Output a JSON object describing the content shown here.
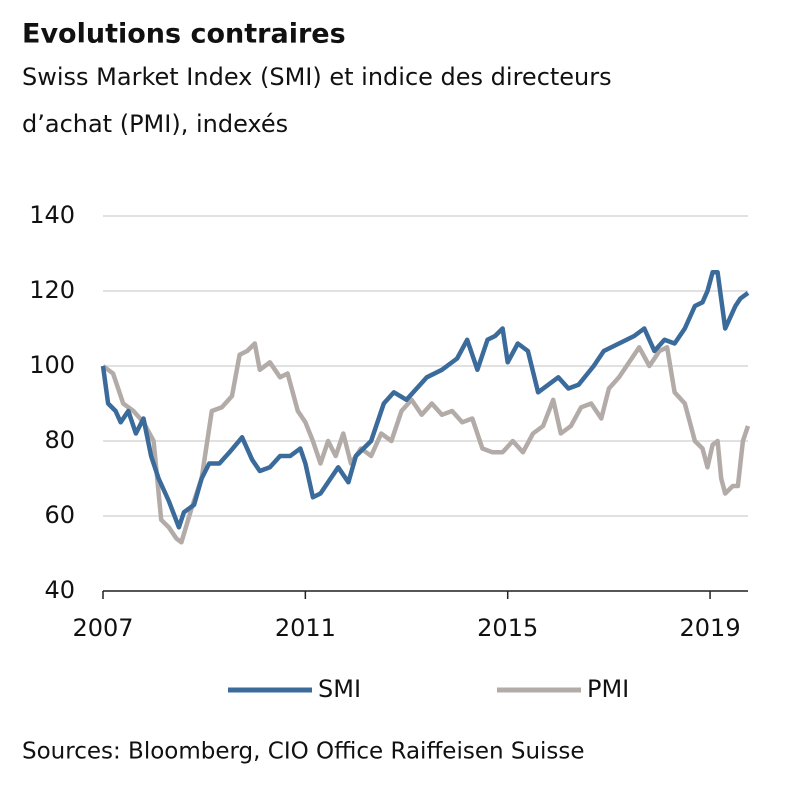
{
  "chart_data": {
    "type": "line",
    "title": "Evolutions contraires",
    "subtitle": [
      "Swiss Market Index (SMI) et indice des directeurs",
      "d’achat (PMI), indexés"
    ],
    "source": "Sources: Bloomberg, CIO Office Raiffeisen Suisse",
    "xlim": [
      2007,
      2019.75
    ],
    "xticks": [
      2007,
      2011,
      2015,
      2019
    ],
    "ylim": [
      40,
      140
    ],
    "yticks": [
      40,
      60,
      80,
      100,
      120,
      140
    ],
    "grid": true,
    "legend": "bottom",
    "series": [
      {
        "name": "SMI",
        "color": "#3b6b9b",
        "x": [
          2007.0,
          2007.1,
          2007.25,
          2007.35,
          2007.5,
          2007.65,
          2007.8,
          2007.95,
          2008.1,
          2008.3,
          2008.5,
          2008.6,
          2008.8,
          2008.95,
          2009.1,
          2009.3,
          2009.5,
          2009.75,
          2009.95,
          2010.1,
          2010.3,
          2010.5,
          2010.7,
          2010.9,
          2011.0,
          2011.15,
          2011.3,
          2011.5,
          2011.65,
          2011.85,
          2012.0,
          2012.3,
          2012.55,
          2012.75,
          2013.0,
          2013.4,
          2013.7,
          2014.0,
          2014.2,
          2014.4,
          2014.6,
          2014.75,
          2014.9,
          2015.0,
          2015.2,
          2015.4,
          2015.6,
          2015.8,
          2016.0,
          2016.2,
          2016.4,
          2016.7,
          2016.9,
          2017.2,
          2017.5,
          2017.7,
          2017.9,
          2018.1,
          2018.3,
          2018.5,
          2018.7,
          2018.85,
          2018.95,
          2019.05,
          2019.15,
          2019.3,
          2019.5,
          2019.6,
          2019.75
        ],
        "values": [
          100,
          90,
          88,
          85,
          88,
          82,
          86,
          76,
          70,
          64,
          57,
          61,
          63,
          70,
          74,
          74,
          77,
          81,
          75,
          72,
          73,
          76,
          76,
          78,
          74,
          65,
          66,
          70,
          73,
          69,
          76,
          80,
          90,
          93,
          91,
          97,
          99,
          102,
          107,
          99,
          107,
          108,
          110,
          101,
          106,
          104,
          93,
          95,
          97,
          94,
          95,
          100,
          104,
          106,
          108,
          110,
          104,
          107,
          106,
          110,
          116,
          117,
          120,
          125,
          125,
          110,
          116,
          118,
          119.5
        ]
      },
      {
        "name": "PMI",
        "color": "#b3aba8",
        "x": [
          2007.0,
          2007.2,
          2007.4,
          2007.6,
          2007.8,
          2008.0,
          2008.15,
          2008.3,
          2008.45,
          2008.55,
          2008.75,
          2008.95,
          2009.15,
          2009.35,
          2009.55,
          2009.7,
          2009.85,
          2010.0,
          2010.1,
          2010.3,
          2010.5,
          2010.65,
          2010.85,
          2011.0,
          2011.15,
          2011.3,
          2011.45,
          2011.6,
          2011.75,
          2011.9,
          2012.1,
          2012.3,
          2012.5,
          2012.7,
          2012.9,
          2013.1,
          2013.3,
          2013.5,
          2013.7,
          2013.9,
          2014.1,
          2014.3,
          2014.5,
          2014.7,
          2014.9,
          2015.1,
          2015.3,
          2015.5,
          2015.7,
          2015.9,
          2016.05,
          2016.25,
          2016.45,
          2016.65,
          2016.85,
          2017.0,
          2017.2,
          2017.4,
          2017.6,
          2017.8,
          2018.0,
          2018.15,
          2018.3,
          2018.5,
          2018.7,
          2018.85,
          2018.95,
          2019.05,
          2019.15,
          2019.22,
          2019.3,
          2019.45,
          2019.55,
          2019.65,
          2019.75
        ],
        "values": [
          100,
          98,
          90,
          88,
          85,
          80,
          59,
          57,
          54,
          53,
          62,
          70,
          88,
          89,
          92,
          103,
          104,
          106,
          99,
          101,
          97,
          98,
          88,
          85,
          80,
          74,
          80,
          76,
          82,
          74,
          78,
          76,
          82,
          80,
          88,
          91,
          87,
          90,
          87,
          88,
          85,
          86,
          78,
          77,
          77,
          80,
          77,
          82,
          84,
          91,
          82,
          84,
          89,
          90,
          86,
          94,
          97,
          101,
          105,
          100,
          104,
          105,
          93,
          90,
          80,
          78,
          73,
          79,
          80,
          70,
          66,
          68,
          68,
          80,
          84
        ]
      }
    ]
  }
}
